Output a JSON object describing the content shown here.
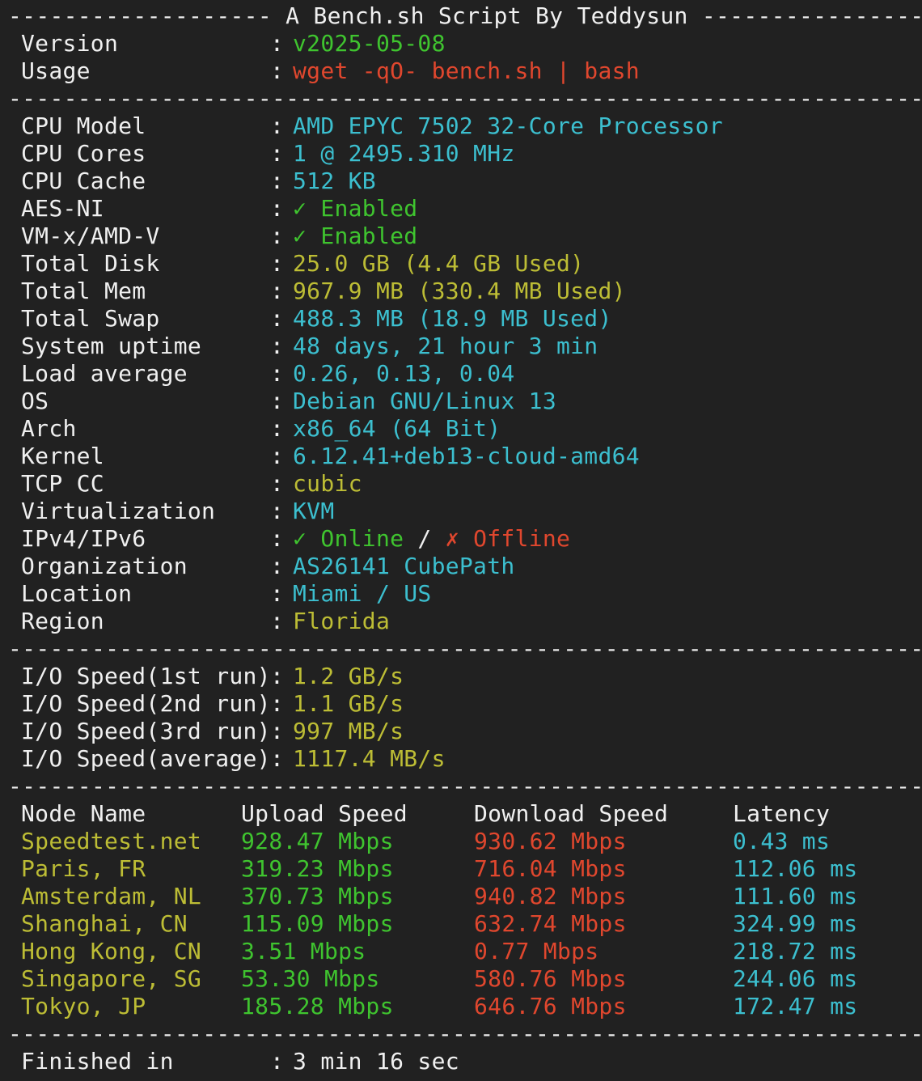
{
  "title": "------------------- A Bench.sh Script By Teddysun -------------------",
  "separator": "----------------------------------------------------------------------",
  "colors": {
    "background": "#212121",
    "text": "#f0f0f0",
    "green": "#3fc42f",
    "red": "#e0472e",
    "cyan": "#3cbfcf",
    "yellow": "#bdbd35"
  },
  "header": [
    {
      "label": "Version",
      "value": "v2025-05-08",
      "color": "g"
    },
    {
      "label": "Usage",
      "value": "wget -qO- bench.sh | bash",
      "color": "r"
    }
  ],
  "system": [
    {
      "label": "CPU Model",
      "value": "AMD EPYC 7502 32-Core Processor",
      "color": "c"
    },
    {
      "label": "CPU Cores",
      "value": "1 @ 2495.310 MHz",
      "color": "c"
    },
    {
      "label": "CPU Cache",
      "value": "512 KB",
      "color": "c"
    },
    {
      "label": "AES-NI",
      "value": "✓ Enabled",
      "color": "g"
    },
    {
      "label": "VM-x/AMD-V",
      "value": "✓ Enabled",
      "color": "g"
    },
    {
      "label": "Total Disk",
      "value": "25.0 GB (4.4 GB Used)",
      "color": "y"
    },
    {
      "label": "Total Mem",
      "value": "967.9 MB (330.4 MB Used)",
      "color": "y"
    },
    {
      "label": "Total Swap",
      "value": "488.3 MB (18.9 MB Used)",
      "color": "c"
    },
    {
      "label": "System uptime",
      "value": "48 days, 21 hour 3 min",
      "color": "c"
    },
    {
      "label": "Load average",
      "value": "0.26, 0.13, 0.04",
      "color": "c"
    },
    {
      "label": "OS",
      "value": "Debian GNU/Linux 13",
      "color": "c"
    },
    {
      "label": "Arch",
      "value": "x86_64 (64 Bit)",
      "color": "c"
    },
    {
      "label": "Kernel",
      "value": "6.12.41+deb13-cloud-amd64",
      "color": "c"
    },
    {
      "label": "TCP CC",
      "value": "cubic",
      "color": "y"
    },
    {
      "label": "Virtualization",
      "value": "KVM",
      "color": "c"
    }
  ],
  "network": {
    "label": "IPv4/IPv6",
    "ipv4": "✓ Online",
    "slash": " / ",
    "ipv6": "✗ Offline"
  },
  "geo": [
    {
      "label": "Organization",
      "value": "AS26141 CubePath",
      "color": "c"
    },
    {
      "label": "Location",
      "value": "Miami / US",
      "color": "c"
    },
    {
      "label": "Region",
      "value": "Florida",
      "color": "y"
    }
  ],
  "io": [
    {
      "label": "I/O Speed(1st run)",
      "value": "1.2 GB/s"
    },
    {
      "label": "I/O Speed(2nd run)",
      "value": "1.1 GB/s"
    },
    {
      "label": "I/O Speed(3rd run)",
      "value": "997 MB/s"
    },
    {
      "label": "I/O Speed(average)",
      "value": "1117.4 MB/s"
    }
  ],
  "speedtest": {
    "headers": [
      "Node Name",
      "Upload Speed",
      "Download Speed",
      "Latency"
    ],
    "rows": [
      [
        "Speedtest.net",
        "928.47 Mbps",
        "930.62 Mbps",
        "0.43 ms"
      ],
      [
        "Paris, FR",
        "319.23 Mbps",
        "716.04 Mbps",
        "112.06 ms"
      ],
      [
        "Amsterdam, NL",
        "370.73 Mbps",
        "940.82 Mbps",
        "111.60 ms"
      ],
      [
        "Shanghai, CN",
        "115.09 Mbps",
        "632.74 Mbps",
        "324.99 ms"
      ],
      [
        "Hong Kong, CN",
        "3.51 Mbps",
        "0.77 Mbps",
        "218.72 ms"
      ],
      [
        "Singapore, SG",
        "53.30 Mbps",
        "580.76 Mbps",
        "244.06 ms"
      ],
      [
        "Tokyo, JP",
        "185.28 Mbps",
        "646.76 Mbps",
        "172.47 ms"
      ]
    ]
  },
  "footer": {
    "label": "Finished in",
    "value": "3 min 16 sec"
  },
  "colon": ":"
}
